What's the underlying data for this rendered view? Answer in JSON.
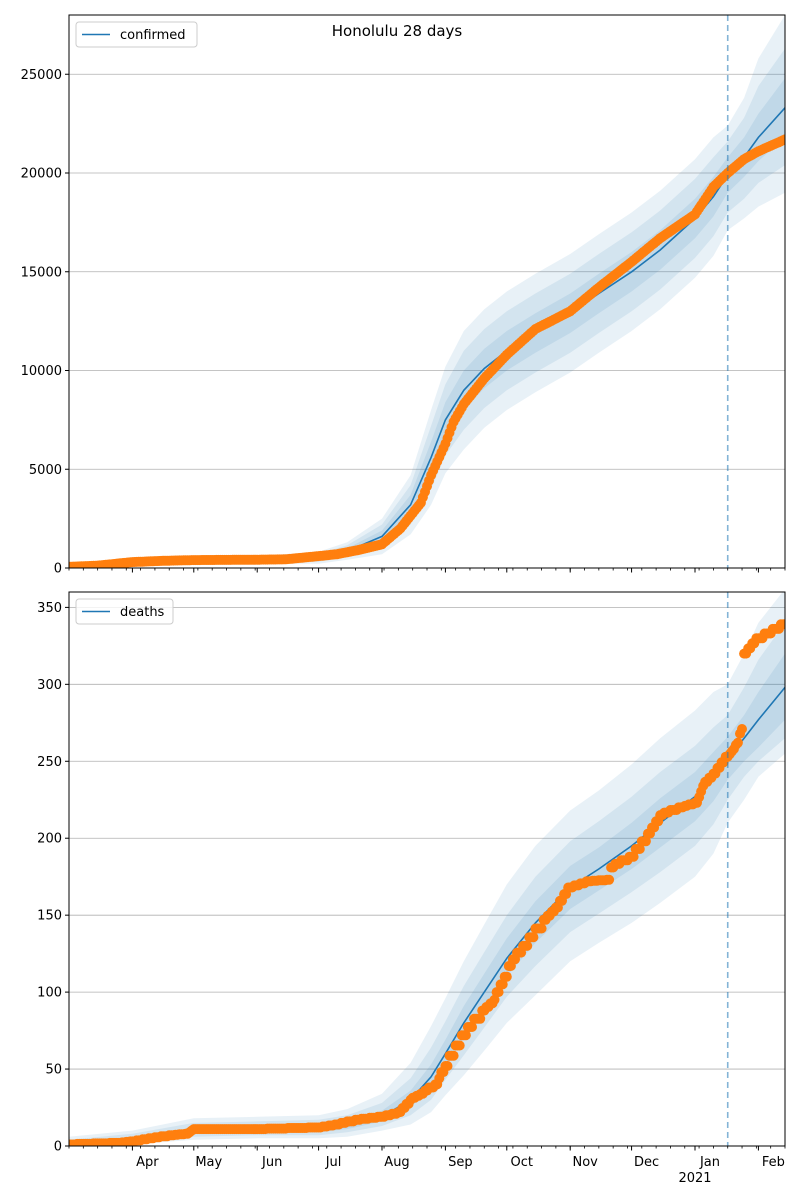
{
  "title": "Honolulu 28 days",
  "chart_data": [
    {
      "type": "line",
      "name": "confirmed-panel",
      "legend": "confirmed",
      "legend_position": "top-left",
      "grid": "horizontal",
      "xlim": [
        "2020-03-01",
        "2021-02-14"
      ],
      "ylim": [
        0,
        28000
      ],
      "yticks": [
        0,
        5000,
        10000,
        15000,
        20000,
        25000
      ],
      "forecast_start": "2021-01-17",
      "model": {
        "x": [
          "2020-03-01",
          "2020-04-01",
          "2020-05-01",
          "2020-06-01",
          "2020-07-01",
          "2020-07-15",
          "2020-08-01",
          "2020-08-15",
          "2020-08-25",
          "2020-09-01",
          "2020-09-10",
          "2020-09-20",
          "2020-10-01",
          "2020-10-15",
          "2020-11-01",
          "2020-11-15",
          "2020-12-01",
          "2020-12-15",
          "2021-01-01",
          "2021-01-10",
          "2021-01-17",
          "2021-01-25",
          "2021-02-01",
          "2021-02-14"
        ],
        "y": [
          60,
          300,
          390,
          400,
          520,
          850,
          1600,
          3200,
          5600,
          7500,
          9000,
          10100,
          11000,
          11900,
          12900,
          13900,
          15000,
          16100,
          17700,
          18800,
          19900,
          20800,
          21800,
          23300
        ],
        "bands": [
          {
            "lower": [
              40,
              220,
              330,
              340,
              420,
              700,
              1300,
              2700,
              4800,
              6600,
              8000,
              9100,
              10000,
              10900,
              11900,
              12900,
              14000,
              15100,
              16700,
              17800,
              19000,
              19800,
              20600,
              21800
            ],
            "upper": [
              80,
              380,
              450,
              470,
              620,
              1000,
              1900,
              3700,
              6400,
              8400,
              10000,
              11100,
              12000,
              12900,
              13900,
              14900,
              16000,
              17100,
              18700,
              19800,
              20800,
              21800,
              23000,
              24800
            ]
          },
          {
            "lower": [
              20,
              150,
              270,
              280,
              320,
              560,
              1000,
              2200,
              4000,
              5700,
              7000,
              8100,
              9000,
              9900,
              10900,
              11900,
              13000,
              14100,
              15700,
              16800,
              18000,
              18700,
              19500,
              20400
            ],
            "upper": [
              100,
              460,
              510,
              540,
              720,
              1150,
              2200,
              4200,
              7200,
              9300,
              11000,
              12100,
              13000,
              13900,
              14900,
              15900,
              17000,
              18100,
              19700,
              20800,
              21600,
              22800,
              24400,
              26300
            ]
          },
          {
            "lower": [
              0,
              80,
              210,
              220,
              220,
              420,
              700,
              1700,
              3200,
              4800,
              6000,
              7100,
              8000,
              8900,
              9900,
              10900,
              12000,
              13100,
              14700,
              15800,
              17100,
              17700,
              18300,
              19000
            ],
            "upper": [
              120,
              540,
              570,
              610,
              820,
              1300,
              2500,
              4700,
              8000,
              10200,
              12000,
              13100,
              14000,
              14900,
              15900,
              16900,
              18000,
              19100,
              20700,
              21800,
              22400,
              23800,
              25800,
              28000
            ]
          }
        ]
      },
      "observed": {
        "x": [
          "2020-03-01",
          "2020-03-15",
          "2020-04-01",
          "2020-04-15",
          "2020-05-01",
          "2020-05-15",
          "2020-06-01",
          "2020-06-15",
          "2020-07-01",
          "2020-07-10",
          "2020-07-20",
          "2020-08-01",
          "2020-08-10",
          "2020-08-20",
          "2020-08-25",
          "2020-09-01",
          "2020-09-05",
          "2020-09-10",
          "2020-09-20",
          "2020-10-01",
          "2020-10-15",
          "2020-11-01",
          "2020-11-15",
          "2020-12-01",
          "2020-12-15",
          "2021-01-01",
          "2021-01-10",
          "2021-01-17",
          "2021-01-25",
          "2021-02-01",
          "2021-02-14"
        ],
        "y": [
          60,
          120,
          300,
          360,
          400,
          410,
          420,
          440,
          600,
          700,
          900,
          1200,
          2000,
          3300,
          4700,
          6300,
          7400,
          8300,
          9600,
          10800,
          12100,
          13000,
          14200,
          15500,
          16700,
          17900,
          19300,
          20000,
          20700,
          21100,
          21700
        ]
      }
    },
    {
      "type": "line",
      "name": "deaths-panel",
      "legend": "deaths",
      "legend_position": "top-left",
      "grid": "horizontal",
      "xlim": [
        "2020-03-01",
        "2021-02-14"
      ],
      "ylim": [
        0,
        360
      ],
      "yticks": [
        0,
        50,
        100,
        150,
        200,
        250,
        300,
        350
      ],
      "forecast_start": "2021-01-17",
      "xticks": [
        {
          "date": "2020-04-01",
          "label": "Apr"
        },
        {
          "date": "2020-05-01",
          "label": "May"
        },
        {
          "date": "2020-06-01",
          "label": "Jun"
        },
        {
          "date": "2020-07-01",
          "label": "Jul"
        },
        {
          "date": "2020-08-01",
          "label": "Aug"
        },
        {
          "date": "2020-09-01",
          "label": "Sep"
        },
        {
          "date": "2020-10-01",
          "label": "Oct"
        },
        {
          "date": "2020-11-01",
          "label": "Nov"
        },
        {
          "date": "2020-12-01",
          "label": "Dec"
        },
        {
          "date": "2021-01-01",
          "label": "Jan"
        },
        {
          "date": "2021-02-01",
          "label": "Feb"
        }
      ],
      "year_label": {
        "date": "2021-01-01",
        "label": "2021"
      },
      "model": {
        "x": [
          "2020-03-01",
          "2020-04-01",
          "2020-05-01",
          "2020-06-01",
          "2020-07-01",
          "2020-07-15",
          "2020-08-01",
          "2020-08-15",
          "2020-08-25",
          "2020-09-01",
          "2020-09-10",
          "2020-09-20",
          "2020-10-01",
          "2020-10-15",
          "2020-11-01",
          "2020-11-15",
          "2020-12-01",
          "2020-12-15",
          "2021-01-01",
          "2021-01-10",
          "2021-01-17",
          "2021-01-25",
          "2021-02-01",
          "2021-02-14"
        ],
        "y": [
          1,
          4,
          10,
          11,
          11,
          13,
          19,
          30,
          45,
          60,
          80,
          100,
          122,
          145,
          168,
          180,
          195,
          210,
          227,
          240,
          252,
          265,
          277,
          298
        ],
        "bands": [
          {
            "lower": [
              0,
              3,
              8,
              9,
              9,
              11,
              16,
              25,
              38,
              52,
              70,
              89,
              110,
              132,
              154,
              166,
              180,
              194,
              211,
              224,
              238,
              250,
              259,
              277
            ],
            "upper": [
              2,
              6,
              12,
              13,
              14,
              16,
              23,
              36,
              53,
              69,
              91,
              112,
              135,
              159,
              182,
              194,
              210,
              226,
              243,
              256,
              266,
              280,
              295,
              320
            ]
          },
          {
            "lower": [
              0,
              2,
              6,
              7,
              7,
              9,
              13,
              20,
              30,
              43,
              59,
              77,
              97,
              117,
              139,
              151,
              165,
              178,
              195,
              209,
              225,
              240,
              250,
              265
            ],
            "upper": [
              4,
              8,
              15,
              16,
              17,
              20,
              28,
              44,
              64,
              81,
              104,
              126,
              150,
              175,
              198,
              211,
              227,
              243,
              260,
              272,
              280,
              298,
              316,
              340
            ]
          },
          {
            "lower": [
              0,
              1,
              4,
              5,
              5,
              6,
              10,
              14,
              22,
              33,
              46,
              62,
              80,
              98,
              120,
              132,
              145,
              158,
              175,
              190,
              210,
              225,
              240,
              255
            ],
            "upper": [
              6,
              10,
              18,
              19,
              20,
              24,
              34,
              54,
              78,
              96,
              120,
              144,
              170,
              195,
              218,
              231,
              248,
              265,
              283,
              295,
              300,
              320,
              340,
              362
            ]
          }
        ]
      },
      "observed": {
        "x": [
          "2020-03-01",
          "2020-03-25",
          "2020-04-01",
          "2020-04-10",
          "2020-04-20",
          "2020-04-28",
          "2020-05-01",
          "2020-06-01",
          "2020-07-01",
          "2020-07-10",
          "2020-07-20",
          "2020-08-01",
          "2020-08-10",
          "2020-08-15",
          "2020-08-20",
          "2020-08-28",
          "2020-09-01",
          "2020-09-10",
          "2020-09-20",
          "2020-09-25",
          "2020-10-01",
          "2020-10-02",
          "2020-10-10",
          "2020-10-20",
          "2020-10-25",
          "2020-11-01",
          "2020-11-10",
          "2020-11-20",
          "2020-11-21",
          "2020-12-01",
          "2020-12-10",
          "2020-12-15",
          "2020-12-25",
          "2021-01-02",
          "2021-01-05",
          "2021-01-10",
          "2021-01-17",
          "2021-01-20",
          "2021-01-22",
          "2021-01-24",
          "2021-01-25",
          "2021-02-01",
          "2021-02-14"
        ],
        "y": [
          1,
          2,
          3,
          5,
          7,
          8,
          11,
          11,
          12,
          14,
          17,
          19,
          22,
          30,
          34,
          40,
          52,
          72,
          88,
          95,
          110,
          117,
          130,
          147,
          155,
          168,
          172,
          173,
          181,
          188,
          203,
          215,
          220,
          223,
          234,
          242,
          253,
          258,
          262,
          271,
          320,
          330,
          339
        ]
      }
    }
  ]
}
